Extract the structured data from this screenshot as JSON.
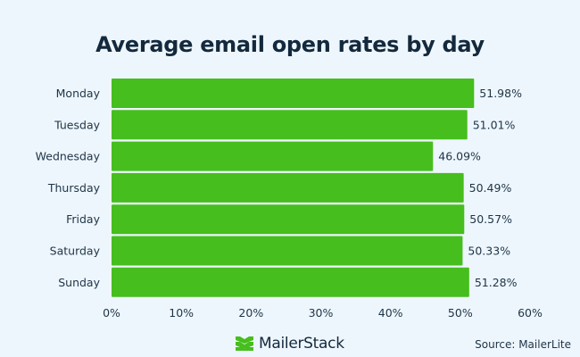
{
  "chart_data": {
    "type": "bar",
    "orientation": "horizontal",
    "title": "Average email open rates by day",
    "categories": [
      "Monday",
      "Tuesday",
      "Wednesday",
      "Thursday",
      "Friday",
      "Saturday",
      "Sunday"
    ],
    "values": [
      51.98,
      51.01,
      46.09,
      50.49,
      50.57,
      50.33,
      51.28
    ],
    "data_labels": [
      "51.98%",
      "51.01%",
      "46.09%",
      "50.49%",
      "50.57%",
      "50.33%",
      "51.28%"
    ],
    "xlim": [
      0,
      60
    ],
    "x_ticks": [
      "0%",
      "10%",
      "20%",
      "30%",
      "40%",
      "50%",
      "60%"
    ],
    "grid": false,
    "bar_color": "#46be1e"
  },
  "footer": {
    "brand": "MailerStack",
    "source": "Source: MailerLite",
    "brand_color": "#46be1e"
  }
}
